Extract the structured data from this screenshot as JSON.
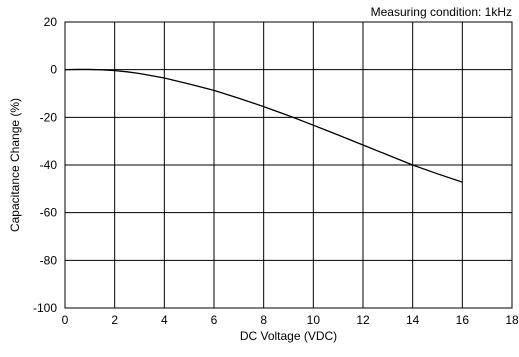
{
  "chart_data": {
    "type": "line",
    "title": "",
    "annotation": "Measuring condition: 1kHz",
    "xlabel": "DC Voltage (VDC)",
    "ylabel": "Capacitance Change (%)",
    "xlim": [
      0,
      18
    ],
    "ylim": [
      -100,
      20
    ],
    "xticks": [
      0,
      2,
      4,
      6,
      8,
      10,
      12,
      14,
      16,
      18
    ],
    "yticks": [
      20,
      0,
      -20,
      -40,
      -60,
      -80,
      -100
    ],
    "x_tick_labels": [
      "0",
      "2",
      "4",
      "6",
      "8",
      "10",
      "12",
      "14",
      "16",
      "18"
    ],
    "y_tick_labels": [
      "20",
      "0",
      "-20",
      "-40",
      "-60",
      "-80",
      "-100"
    ],
    "grid": true,
    "series": [
      {
        "x": [
          0,
          0.5,
          1,
          1.5,
          2,
          2.5,
          3,
          4,
          5,
          6,
          7,
          8,
          9,
          10,
          11,
          12,
          13,
          14,
          15,
          16
        ],
        "y": [
          0,
          0.1,
          0.1,
          -0.1,
          -0.4,
          -0.9,
          -1.6,
          -3.5,
          -6,
          -8.7,
          -12,
          -15.5,
          -19.3,
          -23.3,
          -27.4,
          -31.6,
          -35.8,
          -40,
          -43.7,
          -47.2
        ],
        "color": "#000000"
      }
    ]
  }
}
